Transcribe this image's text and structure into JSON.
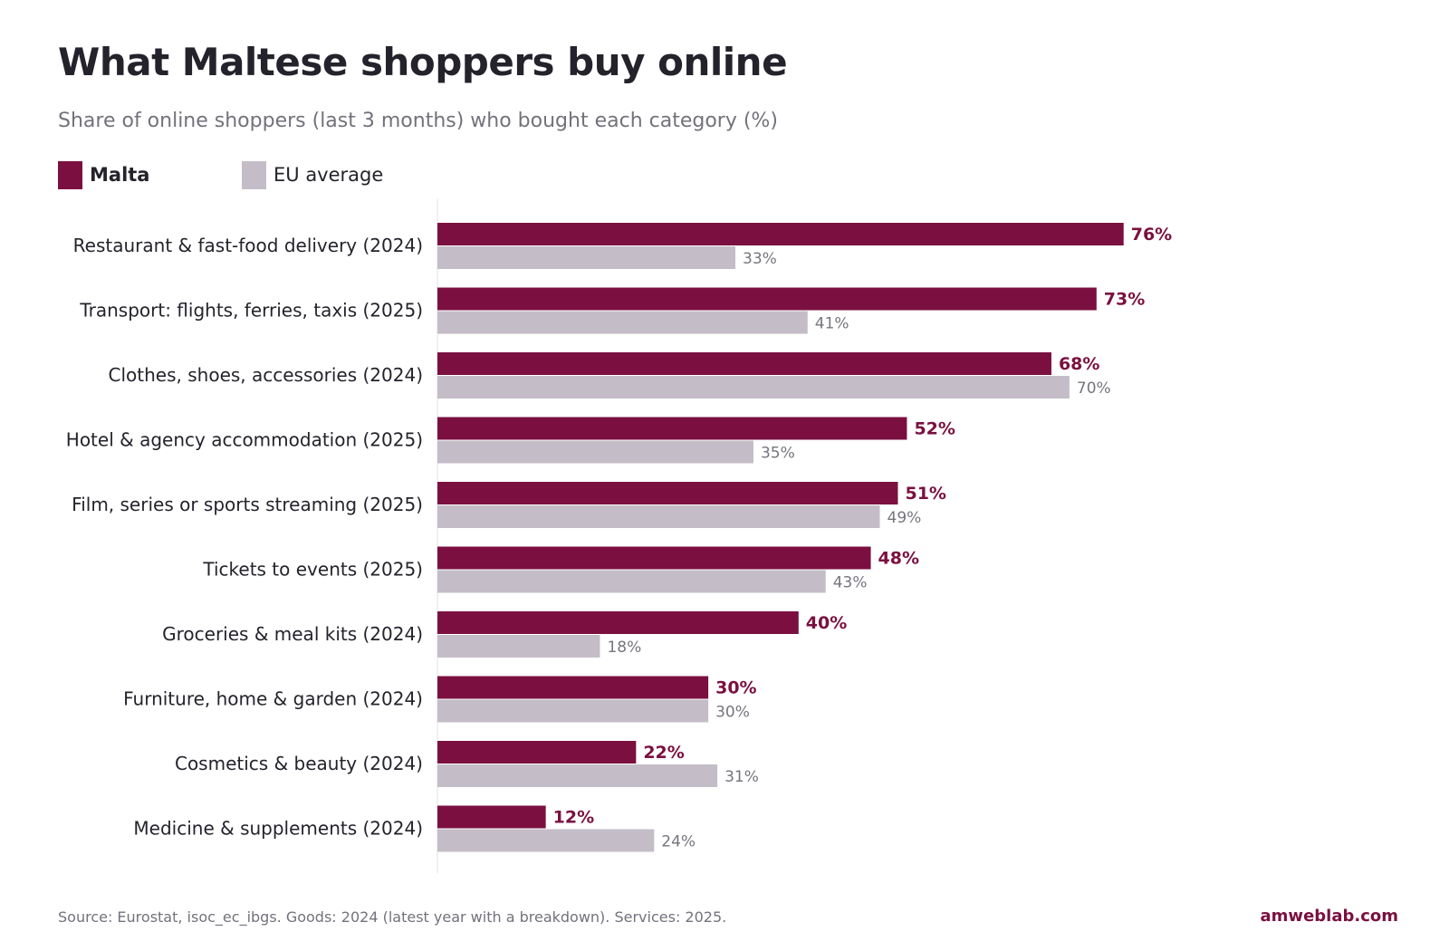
{
  "title": "What Maltese shoppers buy online",
  "subtitle": "Share of online shoppers (last 3 months) who bought each category (%)",
  "legend": {
    "malta": "Malta",
    "eu": "EU average"
  },
  "colors": {
    "malta": "#7b1040",
    "eu": "#c4bdc7",
    "eu_label": "#77747e",
    "axis": "#e2e0e4"
  },
  "footer": {
    "source": "Source: Eurostat, isoc_ec_ibgs. Goods: 2024 (latest year with a breakdown). Services: 2025.",
    "brand": "amweblab.com"
  },
  "chart_data": {
    "type": "bar",
    "orientation": "horizontal",
    "title": "What Maltese shoppers buy online",
    "subtitle": "Share of online shoppers (last 3 months) who bought each category (%)",
    "categories": [
      "Restaurant & fast-food delivery (2024)",
      "Transport: flights, ferries, taxis (2025)",
      "Clothes, shoes, accessories (2024)",
      "Hotel & agency accommodation (2025)",
      "Film, series or sports streaming (2025)",
      "Tickets to events (2025)",
      "Groceries & meal kits (2024)",
      "Furniture, home & garden (2024)",
      "Cosmetics & beauty (2024)",
      "Medicine & supplements (2024)"
    ],
    "series": [
      {
        "name": "Malta",
        "values": [
          76,
          73,
          68,
          52,
          51,
          48,
          40,
          30,
          22,
          12
        ]
      },
      {
        "name": "EU average",
        "values": [
          33,
          41,
          70,
          35,
          49,
          43,
          18,
          30,
          31,
          24
        ]
      }
    ],
    "value_suffix": "%",
    "xlim": [
      0,
      100
    ],
    "grid": false,
    "legend_position": "top-left"
  }
}
